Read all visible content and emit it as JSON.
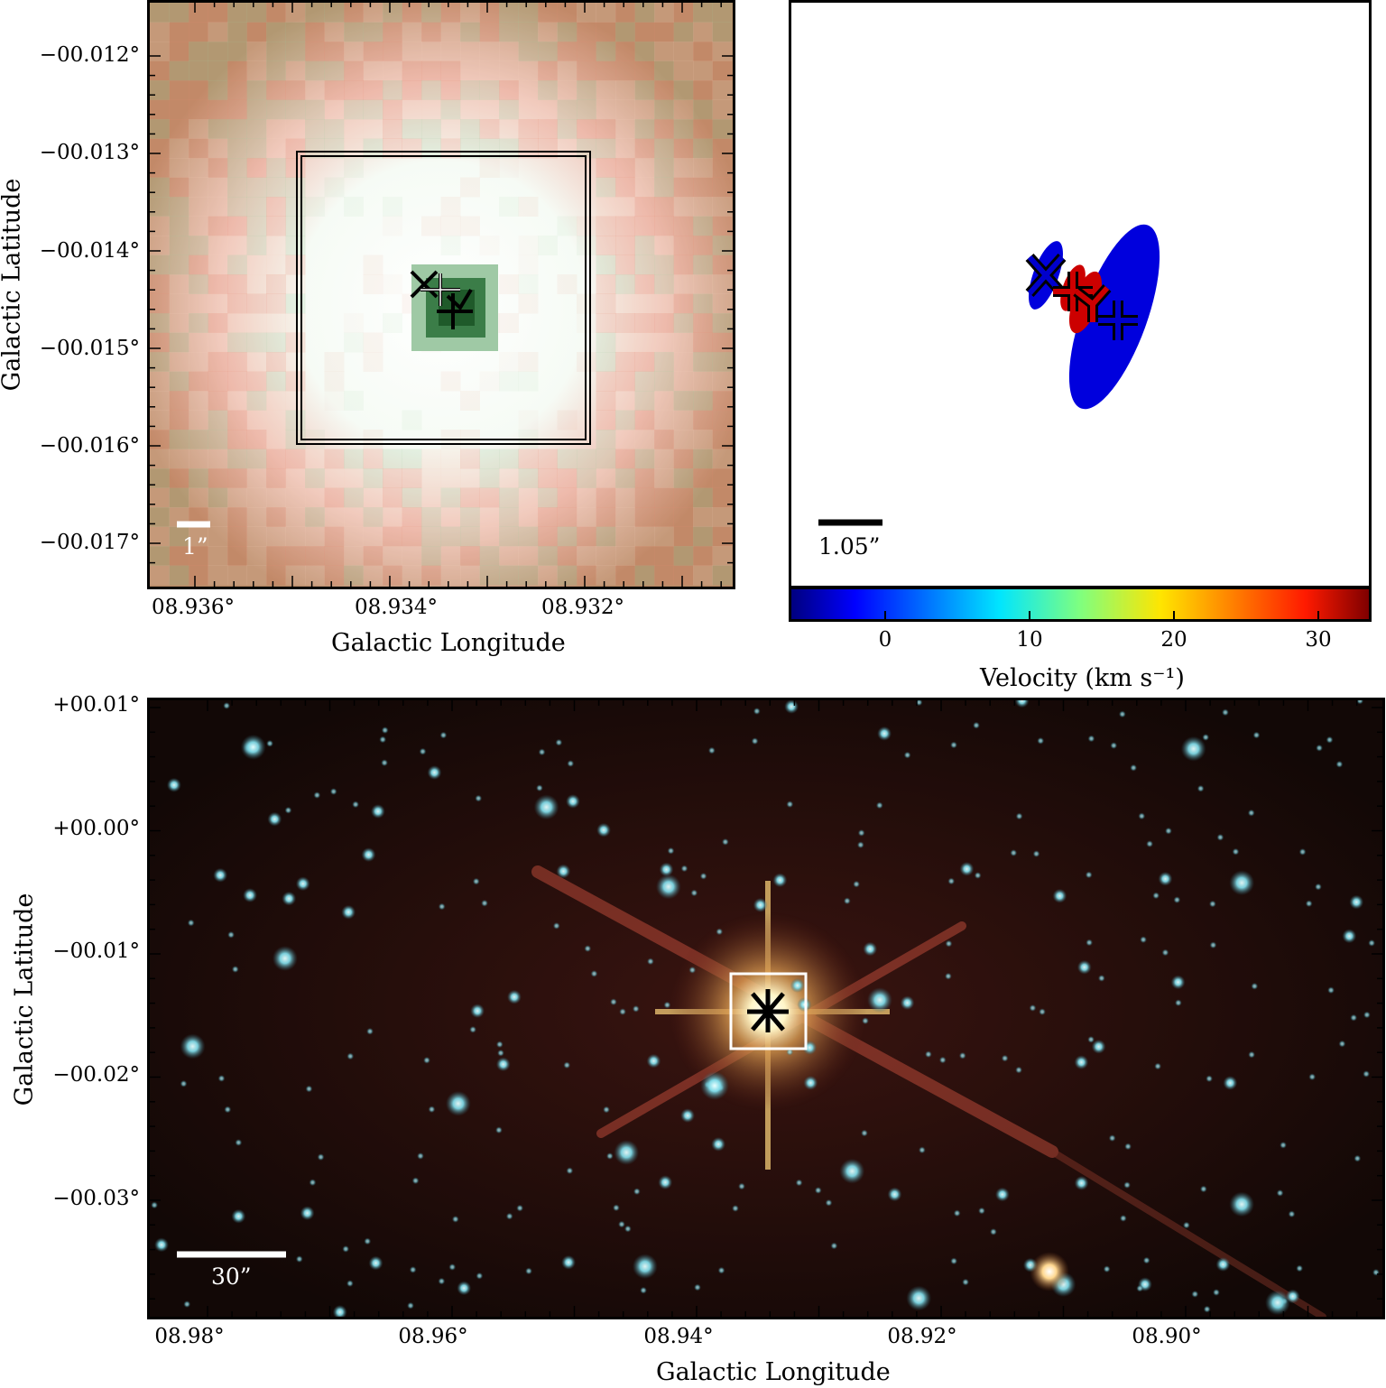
{
  "chart_data": [
    {
      "type": "image",
      "panel": "top-left",
      "xlabel": "Galactic Longitude",
      "ylabel": "Galactic Latitude",
      "xticks": [
        "08.936°",
        "08.934°",
        "08.932°"
      ],
      "yticks": [
        "−00.012°",
        "−00.013°",
        "−00.014°",
        "−00.015°",
        "−00.016°",
        "−00.017°"
      ],
      "scalebar_label": "1”",
      "colors": {
        "frame": "#000000",
        "scalebar": "#ffffff",
        "core": "#1f5a2a"
      }
    },
    {
      "type": "scatter",
      "panel": "top-right",
      "colorbar_label": "Velocity (km s⁻¹)",
      "colorbar_ticks": [
        "0",
        "10",
        "20",
        "30"
      ],
      "colorbar_range": [
        -6.5,
        33.5
      ],
      "scalebar_label": "1.05”",
      "markers": [
        {
          "symbol": "x",
          "velocity": -5,
          "color": "#0000cc"
        },
        {
          "symbol": "+",
          "velocity": 33,
          "color": "#cc0000"
        },
        {
          "symbol": "y",
          "velocity": 33,
          "color": "#cc0000"
        },
        {
          "symbol": "+",
          "velocity": -5,
          "color": "#0000cc"
        }
      ]
    },
    {
      "type": "image",
      "panel": "bottom",
      "xlabel": "Galactic Longitude",
      "ylabel": "Galactic Latitude",
      "xticks": [
        "08.98°",
        "08.96°",
        "08.94°",
        "08.92°",
        "08.90°"
      ],
      "yticks": [
        "+00.01°",
        "+00.00°",
        "−00.01°",
        "−00.02°",
        "−00.03°"
      ],
      "scalebar_label": "30”",
      "colors": {
        "background": "#140806",
        "stars": "#7fd9e6",
        "halo": "#e8b060"
      }
    }
  ]
}
